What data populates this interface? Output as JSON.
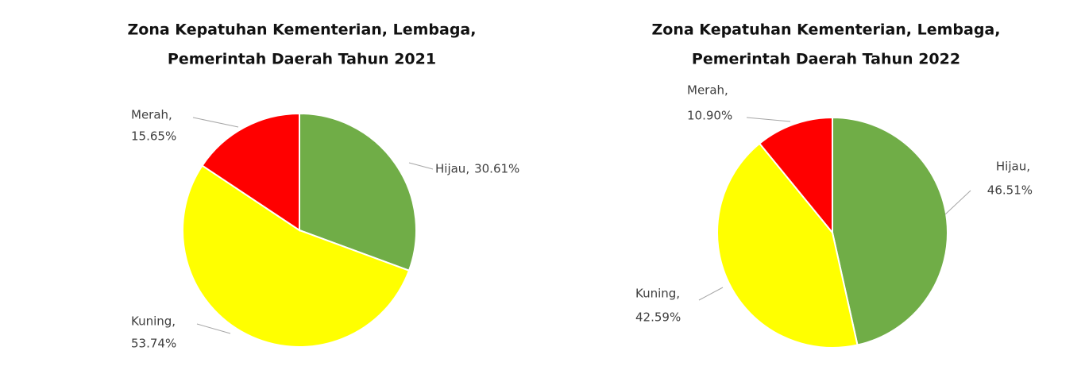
{
  "chart_data": [
    {
      "type": "pie",
      "title": [
        "Zona Kepatuhan Kementerian, Lembaga,",
        "Pemerintah Daerah Tahun 2021"
      ],
      "categories": [
        "Hijau,",
        "Kuning,",
        "Merah,"
      ],
      "values": [
        30.61,
        53.74,
        15.65
      ],
      "value_labels": [
        "30.61%",
        "53.74%",
        "15.65%"
      ],
      "colors": [
        "#70ad47",
        "#ffff00",
        "#ff0000"
      ]
    },
    {
      "type": "pie",
      "title": [
        "Zona Kepatuhan Kementerian, Lembaga,",
        "Pemerintah Daerah Tahun 2022"
      ],
      "categories": [
        "Hijau,",
        "Kuning,",
        "Merah,"
      ],
      "values": [
        46.51,
        42.59,
        10.9
      ],
      "value_labels": [
        "46.51%",
        "42.59%",
        "10.90%"
      ],
      "colors": [
        "#70ad47",
        "#ffff00",
        "#ff0000"
      ]
    }
  ]
}
